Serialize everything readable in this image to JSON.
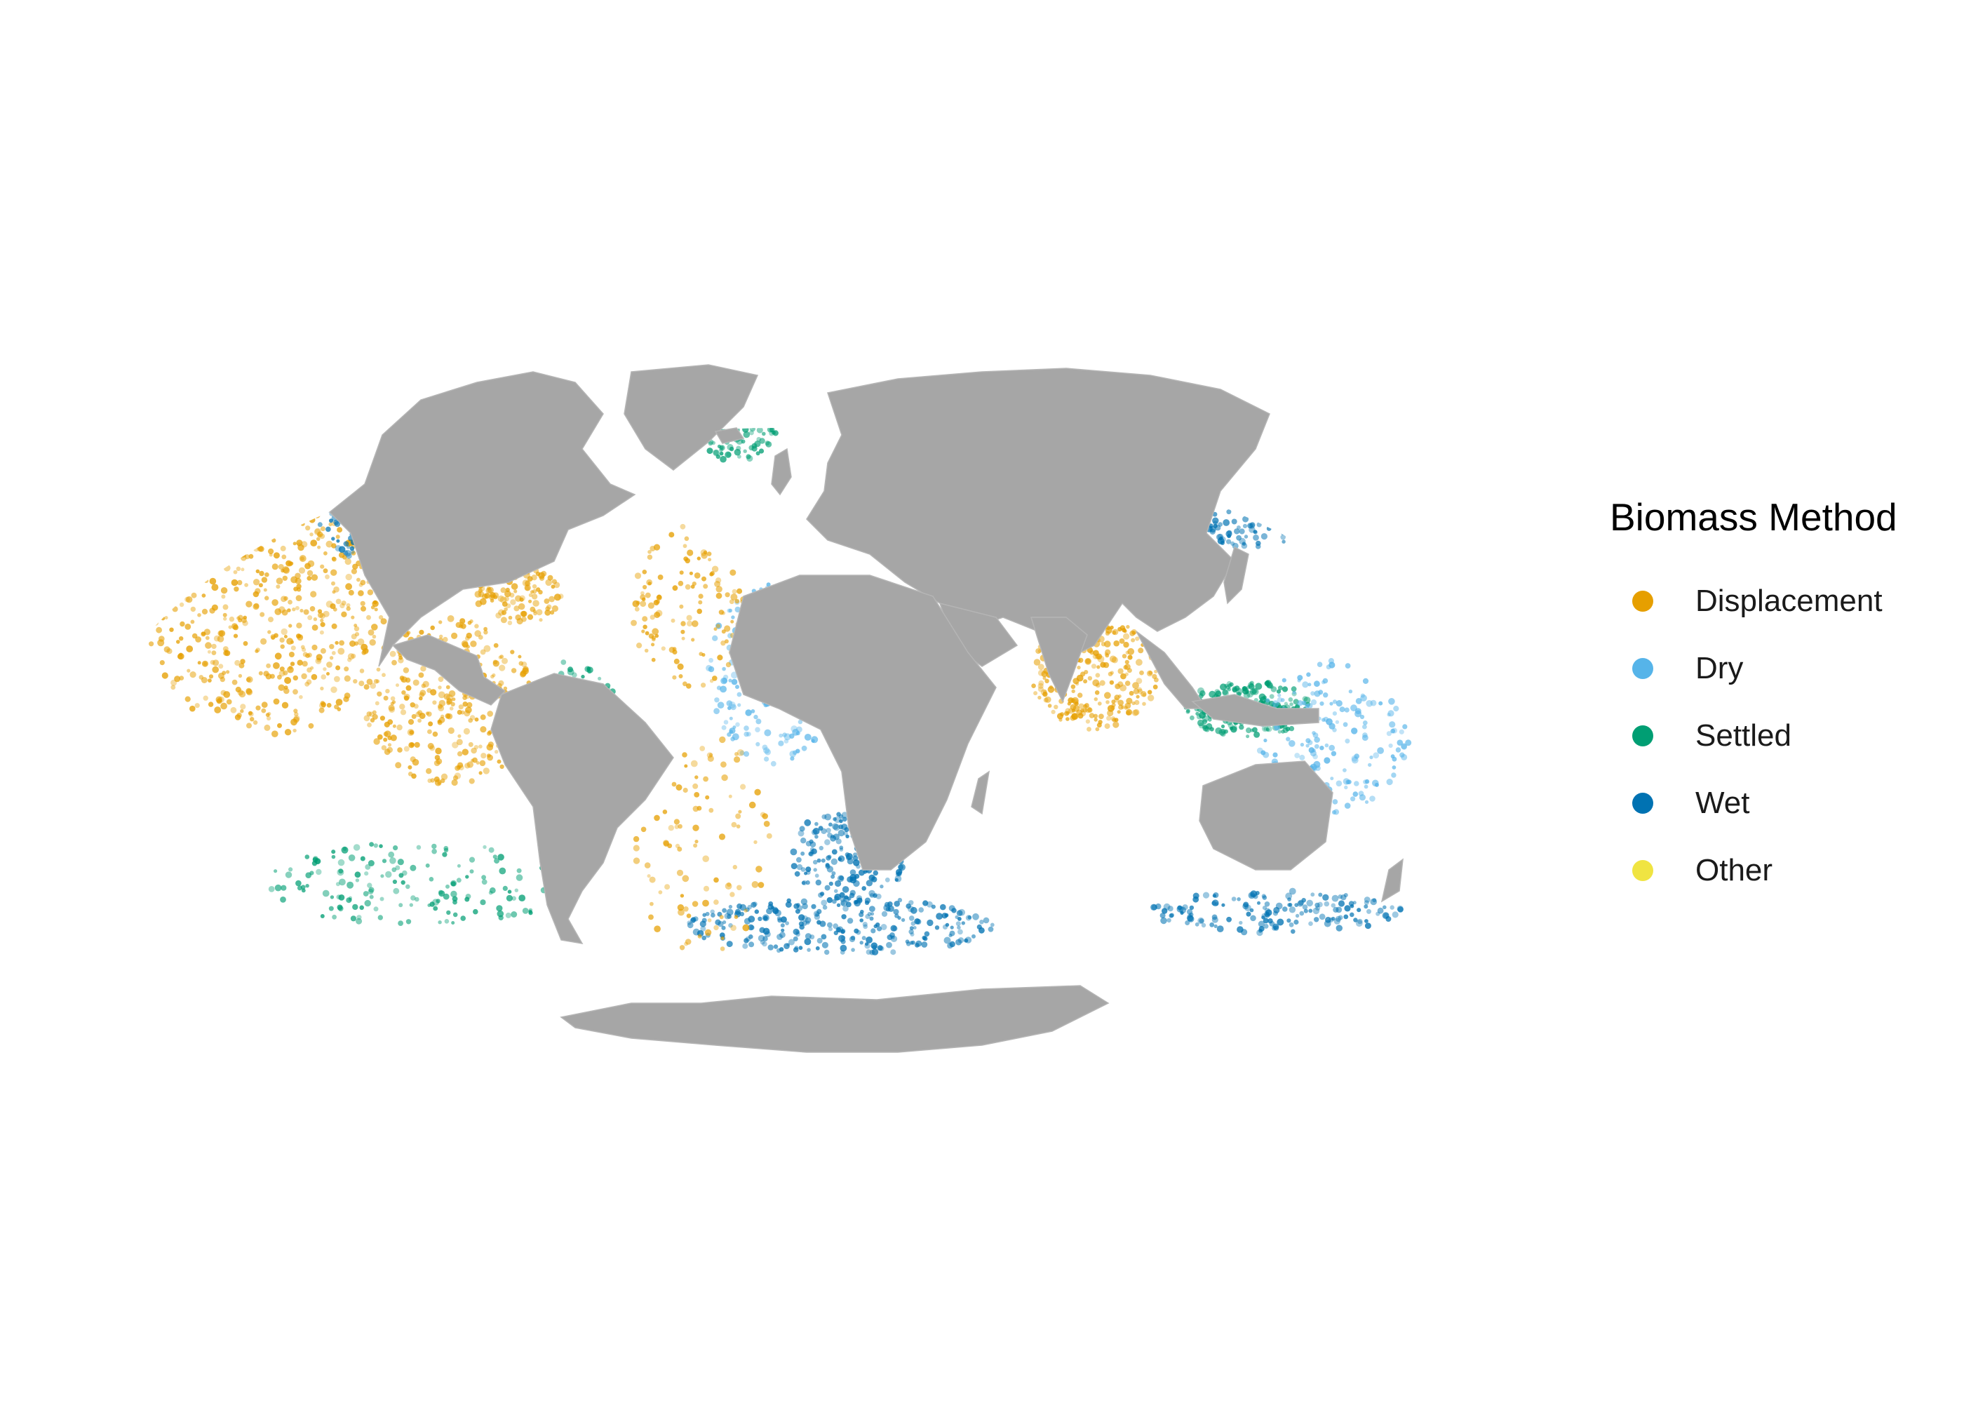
{
  "legend": {
    "title": "Biomass Method",
    "items": [
      {
        "label": "Displacement",
        "color": "#E69F00"
      },
      {
        "label": "Dry",
        "color": "#56B4E9"
      },
      {
        "label": "Settled",
        "color": "#009E73"
      },
      {
        "label": "Wet",
        "color": "#0072B2"
      },
      {
        "label": "Other",
        "color": "#F0E442"
      }
    ]
  },
  "map": {
    "projection": "Mollweide",
    "land_color": "#A6A6A6",
    "ocean_color": "#FFFFFF"
  }
}
